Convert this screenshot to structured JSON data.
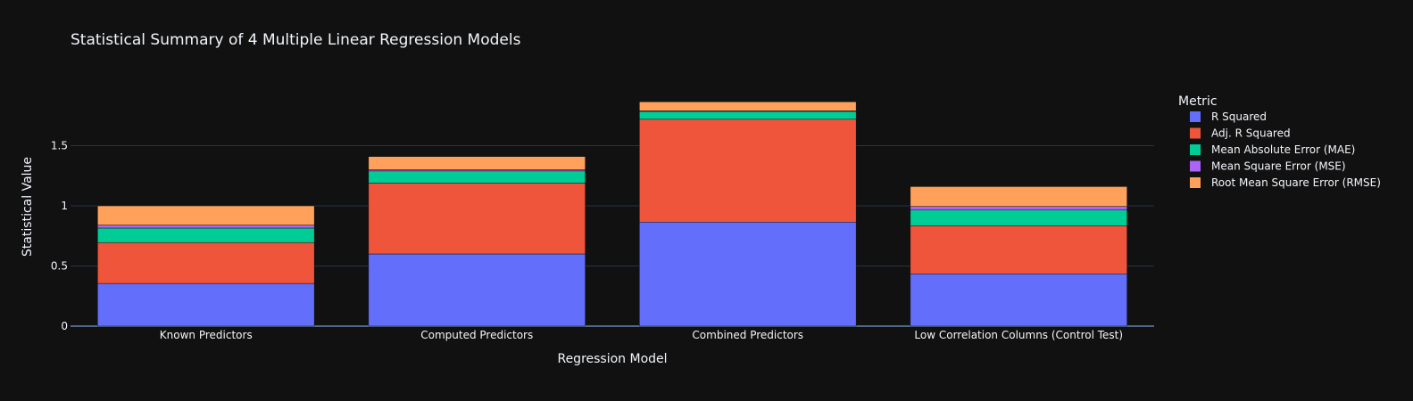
{
  "chart_data": {
    "type": "bar",
    "barmode": "stack",
    "title": "Statistical Summary of 4 Multiple Linear Regression Models",
    "xlabel": "Regression Model",
    "ylabel": "Statistical Value",
    "categories": [
      "Known Predictors",
      "Computed Predictors",
      "Combined Predictors",
      "Low Correlation Columns (Control Test)"
    ],
    "ylim": [
      0,
      2.0
    ],
    "yticks": [
      0,
      0.5,
      1,
      1.5
    ],
    "ytick_labels": [
      "0",
      "0.5",
      "1",
      "1.5"
    ],
    "grid": true,
    "legend": {
      "title": "Metric",
      "position": "right"
    },
    "series": [
      {
        "name": "R Squared",
        "color": "#636efa",
        "values": [
          0.355,
          0.6,
          0.865,
          0.435
        ]
      },
      {
        "name": "Adj. R Squared",
        "color": "#EF553B",
        "values": [
          0.34,
          0.59,
          0.855,
          0.4
        ]
      },
      {
        "name": "Mean Absolute Error (MAE)",
        "color": "#00cc96",
        "values": [
          0.12,
          0.1,
          0.065,
          0.13
        ]
      },
      {
        "name": "Mean Square Error (MSE)",
        "color": "#ab63fa",
        "values": [
          0.025,
          0.01,
          0.005,
          0.03
        ]
      },
      {
        "name": "Root Mean Square Error (RMSE)",
        "color": "#FFA15A",
        "values": [
          0.16,
          0.11,
          0.075,
          0.165
        ]
      }
    ]
  }
}
